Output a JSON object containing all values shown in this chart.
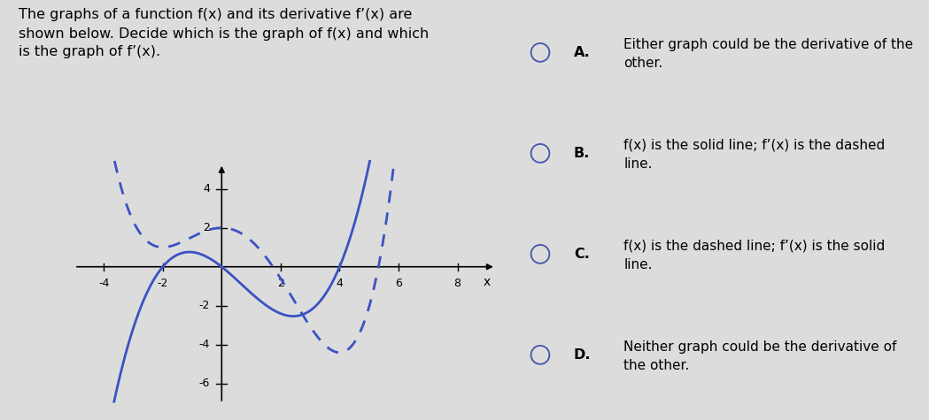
{
  "title_text": "The graphs of a function f(x) and its derivative f’(x) are\nshown below. Decide which is the graph of f(x) and which\nis the graph of f’(x).",
  "options": [
    {
      "label": "A.",
      "text": "Either graph could be the derivative of the\nother."
    },
    {
      "label": "B.",
      "text": "f(x) is the solid line; f’(x) is the dashed\nline."
    },
    {
      "label": "C.",
      "text": "f(x) is the dashed line; f’(x) is the solid\nline."
    },
    {
      "label": "D.",
      "text": "Neither graph could be the derivative of\nthe other."
    }
  ],
  "xmin": -5,
  "xmax": 9.5,
  "ymin": -7,
  "ymax": 5.5,
  "xticks": [
    -4,
    -2,
    2,
    4,
    6,
    8
  ],
  "yticks": [
    -6,
    -4,
    -2,
    2,
    4
  ],
  "line_color": "#3a52c4",
  "bg_color": "#dcdcdc",
  "xlabel": "x",
  "solid_scale": 0.15,
  "dashed_C": 2.0
}
